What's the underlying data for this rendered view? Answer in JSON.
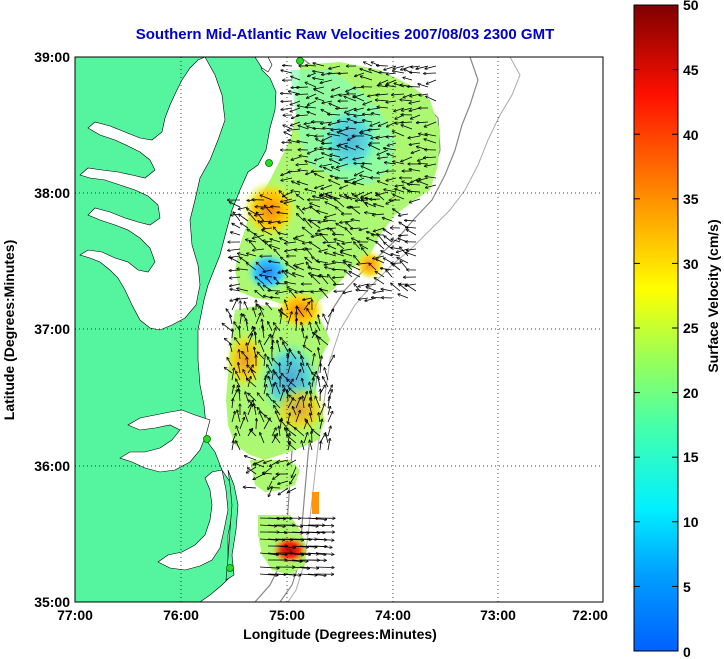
{
  "title": "Southern Mid-Atlantic Raw Velocities 2007/08/03 2300 GMT",
  "xlabel": "Longitude (Degrees:Minutes)",
  "ylabel": "Latitude (Degrees:Minutes)",
  "x_ticks": [
    "77:00",
    "76:00",
    "75:00",
    "74:00",
    "73:00",
    "72:00"
  ],
  "y_ticks": [
    "39:00",
    "38:00",
    "37:00",
    "36:00",
    "35:00"
  ],
  "colorbar": {
    "label": "Surface Velocity (cm/s)",
    "ticks": [
      "50",
      "45",
      "40",
      "35",
      "30",
      "25",
      "20",
      "15",
      "10",
      "5",
      "0"
    ],
    "min": 0,
    "max": 50,
    "colors": [
      "#0000ff",
      "#0080ff",
      "#00ffff",
      "#80ff80",
      "#ffff00",
      "#ff8000",
      "#ff0000",
      "#800000"
    ]
  },
  "map": {
    "land_color": "#55f5a0",
    "water_color": "#ffffff",
    "lon_range": [
      -77,
      -72
    ],
    "lat_range": [
      35,
      39
    ],
    "grid": true,
    "radar_sites": [
      {
        "lon": -74.85,
        "lat": 38.98
      },
      {
        "lon": -75.14,
        "lat": 38.21
      },
      {
        "lon": -75.7,
        "lat": 36.18
      },
      {
        "lon": -75.5,
        "lat": 35.25
      }
    ]
  }
}
